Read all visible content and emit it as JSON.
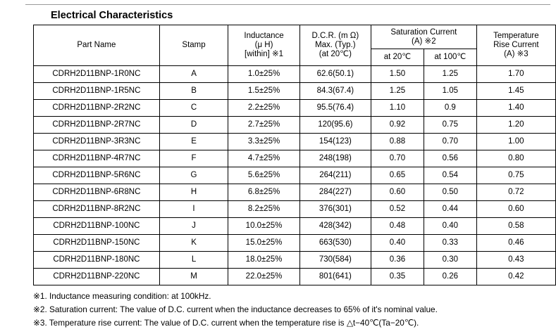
{
  "title": "Electrical Characteristics",
  "headers": {
    "part_name": "Part Name",
    "stamp": "Stamp",
    "inductance": [
      "Inductance",
      "(μ H)",
      "[within] ※1"
    ],
    "dcr": [
      "D.C.R. (m Ω)",
      "Max. (Typ.)",
      "(at 20℃)"
    ],
    "saturation": [
      "Saturation Current",
      "(A) ※2"
    ],
    "sat_20": "at 20℃",
    "sat_100": "at 100℃",
    "temp_rise": [
      "Temperature",
      "Rise Current",
      "(A) ※3"
    ]
  },
  "rows": [
    {
      "part": "CDRH2D11BNP-1R0NC",
      "stamp": "A",
      "inductance": "1.0±25%",
      "dcr": "62.6(50.1)",
      "sat20": "1.50",
      "sat100": "1.25",
      "temp": "1.70"
    },
    {
      "part": "CDRH2D11BNP-1R5NC",
      "stamp": "B",
      "inductance": "1.5±25%",
      "dcr": "84.3(67.4)",
      "sat20": "1.25",
      "sat100": "1.05",
      "temp": "1.45"
    },
    {
      "part": "CDRH2D11BNP-2R2NC",
      "stamp": "C",
      "inductance": "2.2±25%",
      "dcr": "95.5(76.4)",
      "sat20": "1.10",
      "sat100": "0.9",
      "temp": "1.40"
    },
    {
      "part": "CDRH2D11BNP-2R7NC",
      "stamp": "D",
      "inductance": "2.7±25%",
      "dcr": "120(95.6)",
      "sat20": "0.92",
      "sat100": "0.75",
      "temp": "1.20"
    },
    {
      "part": "CDRH2D11BNP-3R3NC",
      "stamp": "E",
      "inductance": "3.3±25%",
      "dcr": "154(123)",
      "sat20": "0.88",
      "sat100": "0.70",
      "temp": "1.00"
    },
    {
      "part": "CDRH2D11BNP-4R7NC",
      "stamp": "F",
      "inductance": "4.7±25%",
      "dcr": "248(198)",
      "sat20": "0.70",
      "sat100": "0.56",
      "temp": "0.80"
    },
    {
      "part": "CDRH2D11BNP-5R6NC",
      "stamp": "G",
      "inductance": "5.6±25%",
      "dcr": "264(211)",
      "sat20": "0.65",
      "sat100": "0.54",
      "temp": "0.75"
    },
    {
      "part": "CDRH2D11BNP-6R8NC",
      "stamp": "H",
      "inductance": "6.8±25%",
      "dcr": "284(227)",
      "sat20": "0.60",
      "sat100": "0.50",
      "temp": "0.72"
    },
    {
      "part": "CDRH2D11BNP-8R2NC",
      "stamp": "I",
      "inductance": "8.2±25%",
      "dcr": "376(301)",
      "sat20": "0.52",
      "sat100": "0.44",
      "temp": "0.60"
    },
    {
      "part": "CDRH2D11BNP-100NC",
      "stamp": "J",
      "inductance": "10.0±25%",
      "dcr": "428(342)",
      "sat20": "0.48",
      "sat100": "0.40",
      "temp": "0.58"
    },
    {
      "part": "CDRH2D11BNP-150NC",
      "stamp": "K",
      "inductance": "15.0±25%",
      "dcr": "663(530)",
      "sat20": "0.40",
      "sat100": "0.33",
      "temp": "0.46"
    },
    {
      "part": "CDRH2D11BNP-180NC",
      "stamp": "L",
      "inductance": "18.0±25%",
      "dcr": "730(584)",
      "sat20": "0.36",
      "sat100": "0.30",
      "temp": "0.43"
    },
    {
      "part": "CDRH2D11BNP-220NC",
      "stamp": "M",
      "inductance": "22.0±25%",
      "dcr": "801(641)",
      "sat20": "0.35",
      "sat100": "0.26",
      "temp": "0.42"
    }
  ],
  "notes": [
    "※1. Inductance measuring condition:  at 100kHz.",
    "※2. Saturation current: The value of D.C. current when the inductance decreases to 65% of it's nominal value.",
    "※3. Temperature rise current: The value of D.C. current when the temperature rise is △t−40℃(Ta−20℃)."
  ]
}
